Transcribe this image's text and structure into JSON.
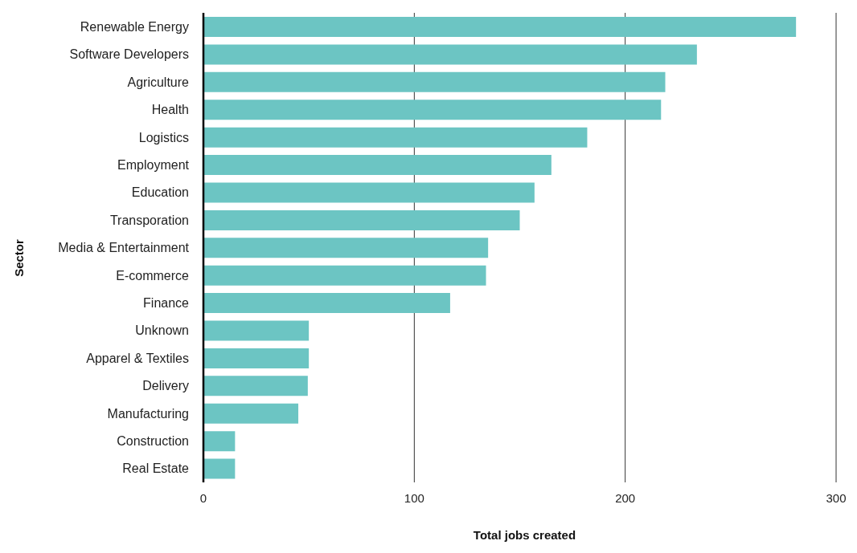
{
  "chart_data": {
    "type": "bar",
    "orientation": "horizontal",
    "xlabel": "Total jobs created",
    "ylabel": "Sector",
    "categories": [
      "Renewable Energy",
      "Software Developers",
      "Agriculture",
      "Health",
      "Logistics",
      "Employment",
      "Education",
      "Transporation",
      "Media & Entertainment",
      "E-commerce",
      "Finance",
      "Unknown",
      "Apparel & Textiles",
      "Delivery",
      "Manufacturing",
      "Construction",
      "Real Estate"
    ],
    "values": [
      281,
      234,
      219,
      217,
      182,
      165,
      157,
      150,
      135,
      134,
      117,
      50,
      50,
      49.5,
      45,
      15,
      15
    ],
    "color": "#6cc5c3",
    "xlim": [
      0,
      300
    ],
    "xticks": [
      0,
      100,
      200,
      300
    ],
    "grid": "x"
  }
}
